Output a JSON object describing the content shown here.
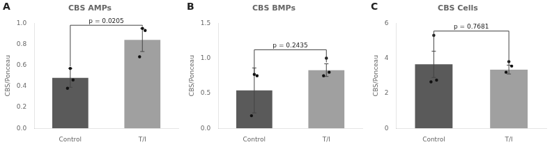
{
  "chart_data": [
    {
      "type": "bar",
      "panel_label": "A",
      "title": "CBS AMPs",
      "ylabel": "CBS/Ponceau",
      "categories": [
        "Control",
        "T/I"
      ],
      "values": [
        0.48,
        0.84
      ],
      "colors": [
        "#5a5a5a",
        "#a0a0a0"
      ],
      "errors": [
        0.09,
        0.11
      ],
      "dots": [
        [
          0.38,
          0.46,
          0.57
        ],
        [
          0.68,
          0.93,
          0.95
        ]
      ],
      "bracket": {
        "label": "p = 0.0205",
        "left_bottom": 0.59,
        "right_bottom": 0.97,
        "top": 0.98,
        "label_y": 0.99
      },
      "ylim": [
        0,
        1.0
      ],
      "yticks": [
        {
          "value": 0,
          "label": "0.0"
        },
        0.2,
        0.4,
        0.6,
        0.8,
        {
          "value": 1,
          "label": "1.0"
        }
      ],
      "grid": false
    },
    {
      "type": "bar",
      "panel_label": "B",
      "title": "CBS BMPs",
      "ylabel": "CBS/Ponceau",
      "categories": [
        "Control",
        "T/I"
      ],
      "values": [
        0.54,
        0.83
      ],
      "colors": [
        "#5a5a5a",
        "#a0a0a0"
      ],
      "errors": [
        0.32,
        0.09
      ],
      "dots": [
        [
          0.18,
          0.75,
          0.77
        ],
        [
          0.75,
          0.8,
          1.0
        ]
      ],
      "bracket": {
        "label": "p = 0.2435",
        "left_bottom": 0.78,
        "right_bottom": 0.94,
        "top": 1.12,
        "label_y": 1.13
      },
      "ylim": [
        0,
        1.5
      ],
      "yticks": [
        {
          "value": 0,
          "label": "0.0"
        },
        0.5,
        {
          "value": 1,
          "label": "1.0"
        },
        1.5
      ],
      "grid": false
    },
    {
      "type": "bar",
      "panel_label": "C",
      "title": "CBS Cells",
      "ylabel": "CBS/Ponceau",
      "categories": [
        "Control",
        "T/I"
      ],
      "values": [
        3.65,
        3.35
      ],
      "colors": [
        "#5a5a5a",
        "#a0a0a0"
      ],
      "errors": [
        0.75,
        0.25
      ],
      "dots": [
        [
          2.65,
          2.75,
          5.3
        ],
        [
          3.2,
          3.55,
          3.8
        ]
      ],
      "bracket": {
        "label": "p = 0.7681",
        "left_bottom": 4.42,
        "right_bottom": 3.62,
        "top": 5.55,
        "label_y": 5.6
      },
      "ylim": [
        0,
        6
      ],
      "yticks": [
        0,
        2,
        4,
        6
      ],
      "grid": false
    }
  ]
}
